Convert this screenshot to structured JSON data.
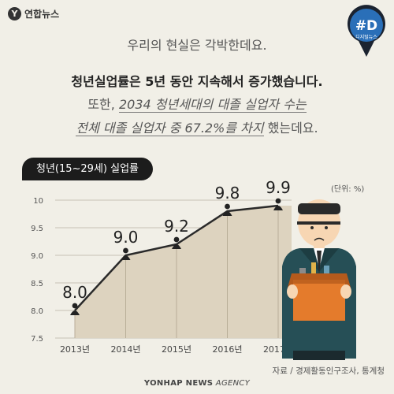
{
  "brand": {
    "name": "연합뉴스",
    "mark": "Y"
  },
  "badge": {
    "tag": "#D",
    "sub": "디지털뉴스"
  },
  "text": {
    "intro": "우리의 현실은 각박한데요.",
    "headline": "청년실업률은 5년 동안 지속해서 증가했습니다.",
    "line2_prefix": "또한, ",
    "line2_emph": "2034 청년세대의 대졸 실업자 수는",
    "line3_emph": "전체 대졸 실업자 중 67.2%를 차지",
    "line3_suffix": " 했는데요."
  },
  "chart_data": {
    "type": "area",
    "title": "청년(15~29세) 실업률",
    "unit_label": "(단위: %)",
    "categories": [
      "2013년",
      "2014년",
      "2015년",
      "2016년",
      "2017년"
    ],
    "values": [
      8.0,
      9.0,
      9.2,
      9.8,
      9.9
    ],
    "value_labels": [
      "8.0",
      "9.0",
      "9.2",
      "9.8",
      "9.9"
    ],
    "y_ticks": [
      "10",
      "9.5",
      "9.0",
      "8.5",
      "8.0",
      "7.5"
    ],
    "ylim": [
      7.5,
      10
    ],
    "grid": true,
    "colors": {
      "fill": "#ddd3bf",
      "line": "#2a2a2a",
      "grid": "#c7c2b5"
    }
  },
  "footer": {
    "source": "자료 / 경제활동인구조사, 통계청",
    "agency_bold": "YONHAP NEWS",
    "agency_light": " AGENCY"
  }
}
